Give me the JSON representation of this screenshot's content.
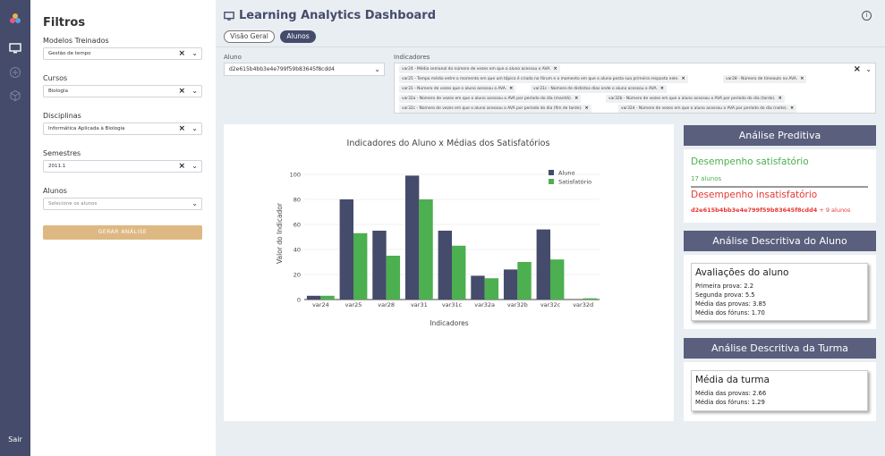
{
  "rail": {
    "logout_label": "Sair"
  },
  "filters": {
    "title": "Filtros",
    "models_label": "Modelos Treinados",
    "models_value": "Gestão de tempo",
    "courses_label": "Cursos",
    "courses_value": "Biologia",
    "disciplines_label": "Disciplinas",
    "disciplines_value": "Informática Aplicada à Biologia",
    "semesters_label": "Semestres",
    "semesters_value": "2011.1",
    "students_label": "Alunos",
    "students_placeholder": "Selecione os alunos",
    "generate_button": "GERAR ANÁLISE"
  },
  "header": {
    "title": "Learning Analytics Dashboard",
    "tabs": [
      {
        "label": "Visão Geral"
      },
      {
        "label": "Alunos"
      }
    ]
  },
  "selection": {
    "aluno_label": "Aluno",
    "aluno_value": "d2e615b4bb3e4e799f59b83645f8cdd4",
    "indicadores_label": "Indicadores",
    "chips": [
      "var24 - Média semanal do número de vezes em que o aluno acessou o AVA.",
      "var25 - Tempo médio entre o momento em que um tópico é criado no fórum e o momento em que o aluno posta sua primeira resposta nele.",
      "var28 - Número de timeouts no AVA.",
      "var31 - Número de vezes que o aluno acessou o AVA.",
      "var31c - Número de distintos dias onde o aluno acessou o AVA.",
      "var32a - Número de vezes em que o aluno acessou o AVA por período do dia (manhã).",
      "var32b - Número de vezes em que o aluno acessou o AVA por período do dia (tarde).",
      "var32c - Número de vezes em que o aluno acessou o AVA por período do dia (fim de tarde).",
      "var32d - Número de vezes em que o aluno acessou o AVA por período do dia (noite)."
    ]
  },
  "chart_data": {
    "type": "bar",
    "title": "Indicadores do Aluno x Médias dos Satisfatórios",
    "xlabel": "Indicadores",
    "ylabel": "Valor do Indicador",
    "categories": [
      "var24",
      "var25",
      "var28",
      "var31",
      "var31c",
      "var32a",
      "var32b",
      "var32c",
      "var32d"
    ],
    "series": [
      {
        "name": "Aluno",
        "color": "#454b6b",
        "values": [
          3,
          80,
          55,
          99,
          55,
          19,
          24,
          56,
          0
        ]
      },
      {
        "name": "Satisfatório",
        "color": "#4caf50",
        "values": [
          3,
          53,
          35,
          80,
          43,
          17,
          30,
          32,
          1
        ]
      }
    ],
    "yticks": [
      0,
      20,
      40,
      60,
      80,
      100
    ],
    "ylim": [
      0,
      105
    ],
    "grid": true,
    "legend": "top-right"
  },
  "predictive": {
    "title": "Análise Preditiva",
    "ok_label": "Desempenho satisfatório",
    "ok_count": "17 alunos",
    "bad_label": "Desempenho insatisfatório",
    "bad_id": "d2e615b4bb3e4e799f59b83645f8cdd4",
    "bad_more": " + 9 alunos"
  },
  "student_desc": {
    "title": "Análise Descritiva do Aluno",
    "card_title": "Avaliações do aluno",
    "lines": [
      "Primeira prova: 2.2",
      "Segunda prova: 5.5",
      "Média das provas: 3.85",
      "Média dos fóruns: 1.70"
    ]
  },
  "class_desc": {
    "title": "Análise Descritiva da Turma",
    "card_title": "Média da turma",
    "lines": [
      "Média das provas: 2.66",
      "Média dos fóruns: 1.29"
    ]
  }
}
